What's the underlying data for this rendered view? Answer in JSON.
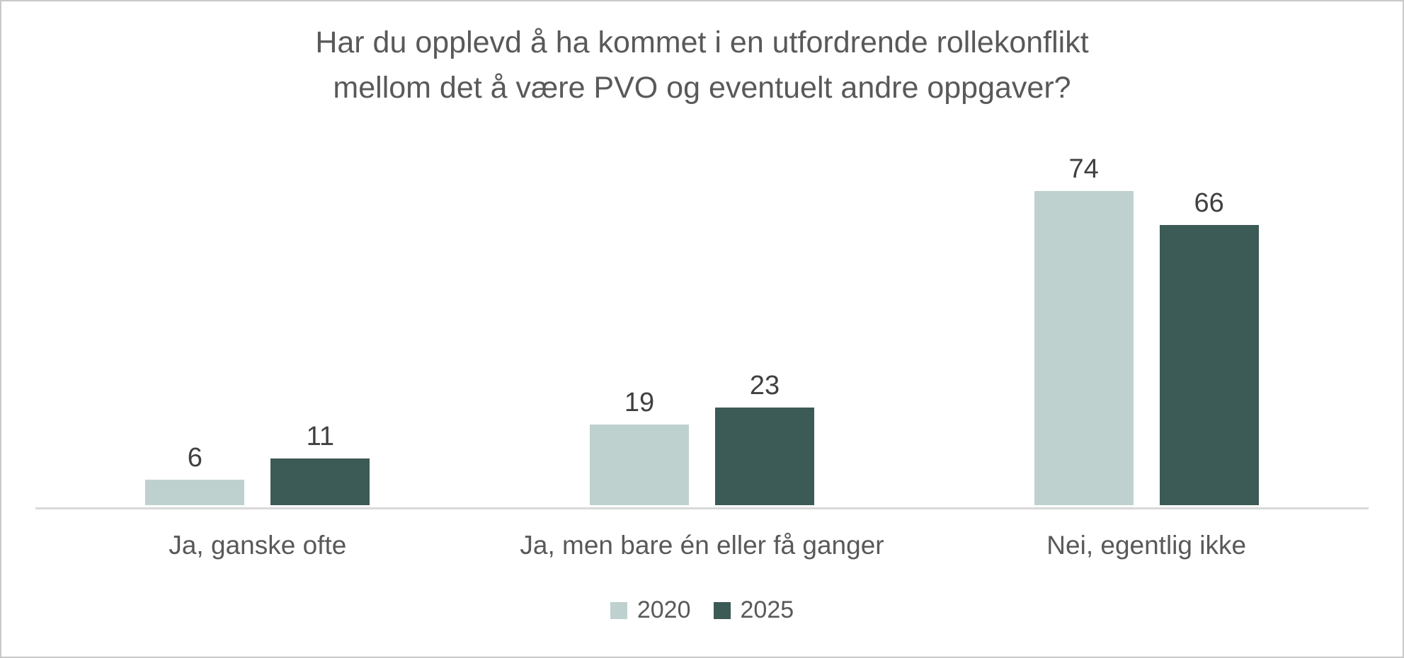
{
  "frame": {
    "background_color": "#ffffff",
    "border_color": "#c9c9c9"
  },
  "chart_data": {
    "type": "bar",
    "title": "Har du opplevd å ha kommet i en utfordrende rollekonflikt mellom det å være PVO og eventuelt andre oppgaver?",
    "title_lines": [
      "Har du opplevd å ha kommet i en utfordrende rollekonflikt",
      "mellom det å være PVO og eventuelt andre oppgaver?"
    ],
    "categories": [
      "Ja, ganske ofte",
      "Ja, men bare én eller få ganger",
      "Nei, egentlig ikke"
    ],
    "series": [
      {
        "name": "2020",
        "color": "#bed1ce",
        "values": [
          6,
          19,
          74
        ]
      },
      {
        "name": "2025",
        "color": "#3c5a56",
        "values": [
          11,
          23,
          66
        ]
      }
    ],
    "xlabel": "",
    "ylabel": "",
    "ylim": [
      0,
      80
    ],
    "grid": false,
    "data_labels": true,
    "legend_position": "bottom",
    "colors": {
      "title_text": "#595959",
      "data_label_text": "#404040",
      "category_label_text": "#595959",
      "legend_text": "#595959",
      "axis_line": "#d9d9d9"
    }
  }
}
